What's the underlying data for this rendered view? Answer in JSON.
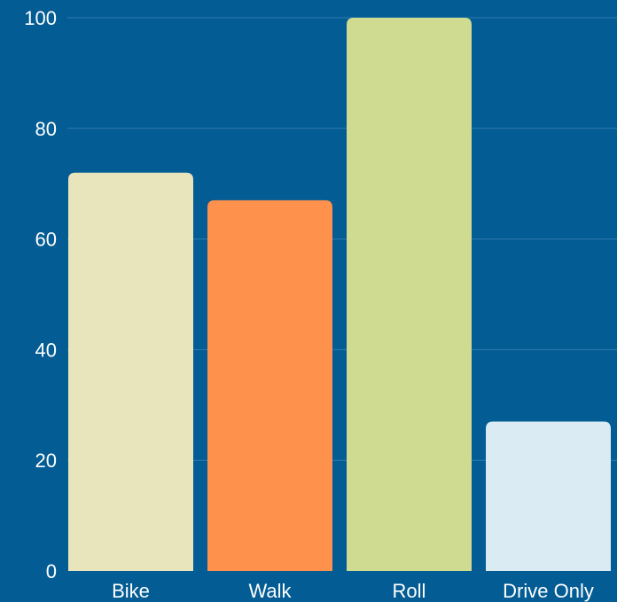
{
  "colors": {
    "background": "#035c93",
    "gridline": "#2f7bb0",
    "text": "#ffffff"
  },
  "chart_data": {
    "type": "bar",
    "title": "",
    "xlabel": "",
    "ylabel": "",
    "categories": [
      "Bike",
      "Walk",
      "Roll",
      "Drive Only"
    ],
    "values": [
      72,
      67,
      100,
      27
    ],
    "bar_colors": [
      "#e8e5bd",
      "#fe914c",
      "#cfdb90",
      "#dbebf4"
    ],
    "ylim": [
      0,
      100
    ],
    "yticks": [
      0,
      20,
      40,
      60,
      80,
      100
    ],
    "grid": true,
    "legend": "none"
  }
}
